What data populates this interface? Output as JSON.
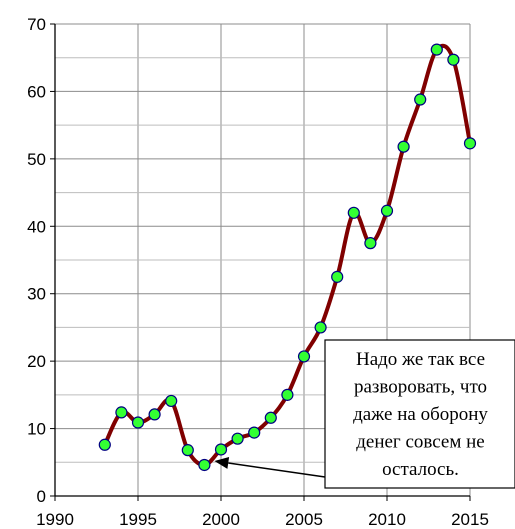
{
  "chart_data": {
    "type": "line",
    "title": "",
    "xlabel": "",
    "ylabel": "",
    "xlim": [
      1990,
      2015
    ],
    "ylim": [
      0,
      70
    ],
    "x_ticks": [
      1990,
      1995,
      2000,
      2005,
      2010,
      2015
    ],
    "y_ticks": [
      0,
      10,
      20,
      30,
      40,
      50,
      60,
      70
    ],
    "x_tick_labels": [
      "1990",
      "1995",
      "2000",
      "2005",
      "2010",
      "2015"
    ],
    "y_tick_labels": [
      "0",
      "10",
      "20",
      "30",
      "40",
      "50",
      "60",
      "70"
    ],
    "grid": true,
    "legend": "none",
    "line_color": "#800000",
    "marker_color": "#33ff33",
    "series": [
      {
        "x": [
          1993,
          1994,
          1995,
          1996,
          1997,
          1998,
          1999,
          2000,
          2001,
          2002,
          2003,
          2004,
          2005,
          2006,
          2007,
          2008,
          2009,
          2010,
          2011,
          2012,
          2013,
          2014,
          2015
        ],
        "values": [
          7.6,
          12.4,
          10.9,
          12.1,
          14.1,
          6.8,
          4.6,
          6.9,
          8.5,
          9.4,
          11.6,
          15.0,
          20.7,
          25.0,
          32.5,
          42.0,
          37.5,
          42.3,
          51.8,
          58.8,
          66.2,
          64.7,
          52.3
        ]
      }
    ],
    "annotations": [
      {
        "lines": [
          "Надо же так все",
          "разворовать, что",
          "даже на оборону",
          "денег совсем не",
          "осталось."
        ],
        "points_to": {
          "x": 1999,
          "y": 4.6
        }
      }
    ]
  }
}
